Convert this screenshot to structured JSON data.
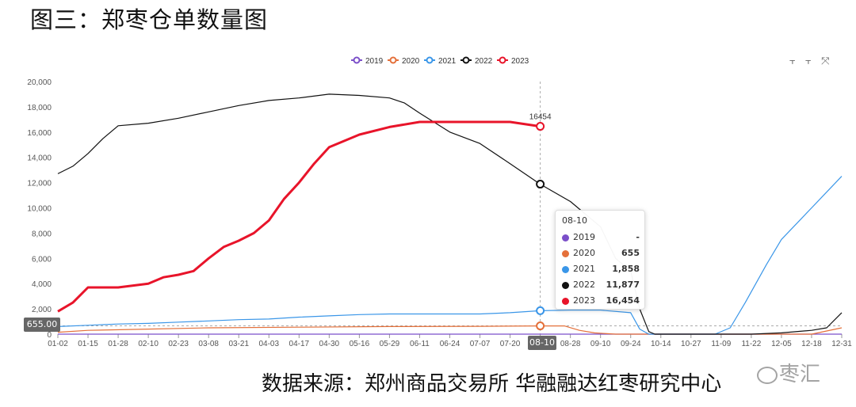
{
  "title": "图三：郑枣仓单数量图",
  "source": "数据来源：郑州商品交易所 华融融达红枣研究中心",
  "watermark": "枣汇",
  "toolbox": {
    "icons": [
      "line-chart-icon",
      "bar-chart-icon",
      "zoom-icon"
    ]
  },
  "pointer": {
    "y_label": "655.00",
    "x_label": "08-10",
    "series_label": "16454"
  },
  "tooltip": {
    "date": "08-10",
    "rows": [
      {
        "name": "2019",
        "value": "-",
        "color": "#7b4fc9"
      },
      {
        "name": "2020",
        "value": "655",
        "color": "#e4703a"
      },
      {
        "name": "2021",
        "value": "1,858",
        "color": "#3a96e8"
      },
      {
        "name": "2022",
        "value": "11,877",
        "color": "#111111"
      },
      {
        "name": "2023",
        "value": "16,454",
        "color": "#e8142a"
      }
    ]
  },
  "chart_data": {
    "type": "line",
    "ylim": [
      0,
      20000
    ],
    "yticks": [
      "0",
      "2,000",
      "4,000",
      "6,000",
      "8,000",
      "10,000",
      "12,000",
      "14,000",
      "16,000",
      "18,000",
      "20,000"
    ],
    "xticks": [
      "01-02",
      "01-15",
      "01-28",
      "02-10",
      "02-23",
      "03-08",
      "03-21",
      "04-03",
      "04-17",
      "04-30",
      "05-16",
      "05-29",
      "06-11",
      "06-24",
      "07-07",
      "07-20",
      "08-10",
      "08-28",
      "09-10",
      "09-24",
      "10-14",
      "10-27",
      "11-09",
      "11-22",
      "12-05",
      "12-18",
      "12-31"
    ],
    "legend": [
      "2019",
      "2020",
      "2021",
      "2022",
      "2023"
    ],
    "legend_position": "top-center",
    "grid": false,
    "series": [
      {
        "name": "2019",
        "color": "#7b4fc9",
        "points": [
          [
            0,
            0
          ],
          [
            26,
            0
          ]
        ]
      },
      {
        "name": "2020",
        "color": "#e4703a",
        "points": [
          [
            0,
            150
          ],
          [
            1,
            300
          ],
          [
            3,
            400
          ],
          [
            5,
            500
          ],
          [
            8,
            550
          ],
          [
            11,
            600
          ],
          [
            14,
            620
          ],
          [
            16,
            655
          ],
          [
            16.8,
            650
          ],
          [
            17.3,
            300
          ],
          [
            17.8,
            100
          ],
          [
            18.5,
            0
          ],
          [
            25,
            0
          ],
          [
            26,
            500
          ]
        ]
      },
      {
        "name": "2021",
        "color": "#3a96e8",
        "points": [
          [
            0,
            600
          ],
          [
            1,
            700
          ],
          [
            2,
            800
          ],
          [
            3,
            850
          ],
          [
            4,
            950
          ],
          [
            5,
            1050
          ],
          [
            6,
            1150
          ],
          [
            7,
            1200
          ],
          [
            8,
            1350
          ],
          [
            9,
            1450
          ],
          [
            10,
            1550
          ],
          [
            11,
            1600
          ],
          [
            12,
            1600
          ],
          [
            13,
            1600
          ],
          [
            14,
            1600
          ],
          [
            15,
            1700
          ],
          [
            16,
            1858
          ],
          [
            17,
            1900
          ],
          [
            18,
            1900
          ],
          [
            19,
            1700
          ],
          [
            19.3,
            400
          ],
          [
            19.6,
            0
          ],
          [
            21.8,
            0
          ],
          [
            22.3,
            500
          ],
          [
            22.8,
            2500
          ],
          [
            23.5,
            5500
          ],
          [
            24,
            7500
          ],
          [
            25,
            10000
          ],
          [
            26,
            12500
          ]
        ]
      },
      {
        "name": "2022",
        "color": "#111111",
        "points": [
          [
            0,
            12700
          ],
          [
            0.5,
            13300
          ],
          [
            1,
            14300
          ],
          [
            1.5,
            15500
          ],
          [
            2,
            16500
          ],
          [
            3,
            16700
          ],
          [
            4,
            17100
          ],
          [
            5,
            17600
          ],
          [
            6,
            18100
          ],
          [
            7,
            18500
          ],
          [
            8,
            18700
          ],
          [
            9,
            19000
          ],
          [
            10,
            18900
          ],
          [
            11,
            18700
          ],
          [
            11.5,
            18300
          ],
          [
            12,
            17500
          ],
          [
            13,
            16000
          ],
          [
            14,
            15100
          ],
          [
            15,
            13500
          ],
          [
            16,
            11877
          ],
          [
            17,
            10500
          ],
          [
            18,
            8500
          ],
          [
            18.5,
            6000
          ],
          [
            19,
            5000
          ],
          [
            19.3,
            2000
          ],
          [
            19.6,
            200
          ],
          [
            19.8,
            0
          ],
          [
            23,
            0
          ],
          [
            24,
            100
          ],
          [
            25,
            300
          ],
          [
            25.5,
            500
          ],
          [
            26,
            1700
          ]
        ]
      },
      {
        "name": "2023",
        "color": "#e8142a",
        "points": [
          [
            0,
            1800
          ],
          [
            0.5,
            2500
          ],
          [
            1,
            3700
          ],
          [
            2,
            3700
          ],
          [
            3,
            4000
          ],
          [
            3.5,
            4500
          ],
          [
            4,
            4700
          ],
          [
            4.5,
            5000
          ],
          [
            5,
            6000
          ],
          [
            5.5,
            6900
          ],
          [
            6,
            7400
          ],
          [
            6.5,
            8000
          ],
          [
            7,
            9000
          ],
          [
            7.5,
            10700
          ],
          [
            8,
            12000
          ],
          [
            8.5,
            13500
          ],
          [
            9,
            14800
          ],
          [
            10,
            15800
          ],
          [
            11,
            16400
          ],
          [
            12,
            16800
          ],
          [
            13,
            16800
          ],
          [
            14,
            16800
          ],
          [
            15,
            16800
          ],
          [
            16,
            16454
          ]
        ]
      }
    ]
  }
}
